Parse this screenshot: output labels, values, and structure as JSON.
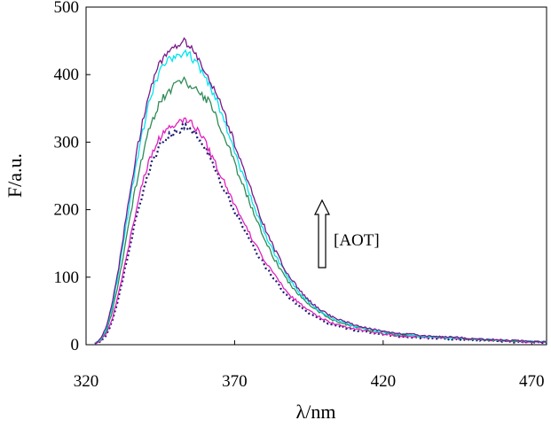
{
  "chart_data": {
    "type": "line",
    "title": "",
    "xlabel": "λ/nm",
    "ylabel": "F/a.u.",
    "xlim": [
      320,
      475
    ],
    "ylim": [
      0,
      500
    ],
    "xticks": [
      320,
      370,
      420,
      470
    ],
    "yticks": [
      0,
      100,
      200,
      300,
      400,
      500
    ],
    "grid": false,
    "annotation": "[AOT]",
    "annotation_arrow": "up",
    "series": [
      {
        "color": "#1a1a6e",
        "style": "dotted",
        "x": [
          323,
          325,
          327,
          329,
          331,
          333,
          335,
          337,
          339,
          341,
          343,
          345,
          347,
          349,
          351,
          353,
          355,
          357,
          359,
          361,
          363,
          365,
          367,
          369,
          371,
          373,
          375,
          377,
          379,
          381,
          383,
          385,
          387,
          389,
          391,
          393,
          395,
          397,
          399,
          401,
          403,
          405,
          410,
          415,
          420,
          425,
          430,
          435,
          440,
          445,
          450,
          455,
          460,
          465,
          470,
          475
        ],
        "values": [
          2,
          5,
          15,
          38,
          70,
          110,
          150,
          190,
          225,
          255,
          278,
          295,
          305,
          312,
          318,
          322,
          320,
          312,
          300,
          285,
          262,
          245,
          225,
          205,
          188,
          175,
          158,
          140,
          125,
          112,
          98,
          88,
          76,
          68,
          60,
          53,
          47,
          42,
          37,
          33,
          29,
          27,
          22,
          18,
          15,
          12,
          11,
          10,
          9,
          8,
          7,
          6,
          5,
          4,
          4,
          3
        ]
      },
      {
        "color": "#e020c0",
        "style": "solid",
        "x": [
          323,
          325,
          327,
          329,
          331,
          333,
          335,
          337,
          339,
          341,
          343,
          345,
          347,
          349,
          351,
          353,
          355,
          357,
          359,
          361,
          363,
          365,
          367,
          369,
          371,
          373,
          375,
          377,
          379,
          381,
          383,
          385,
          387,
          389,
          391,
          393,
          395,
          397,
          399,
          401,
          403,
          405,
          410,
          415,
          420,
          425,
          430,
          435,
          440,
          445,
          450,
          455,
          460,
          465,
          470,
          475
        ],
        "values": [
          2,
          6,
          18,
          42,
          78,
          118,
          160,
          200,
          240,
          270,
          292,
          308,
          318,
          325,
          332,
          335,
          330,
          320,
          308,
          292,
          272,
          255,
          235,
          215,
          197,
          182,
          165,
          148,
          132,
          118,
          105,
          93,
          82,
          72,
          64,
          57,
          51,
          45,
          40,
          36,
          32,
          29,
          24,
          20,
          16,
          13,
          12,
          11,
          10,
          9,
          8,
          7,
          6,
          5,
          4,
          4
        ]
      },
      {
        "color": "#2e8b57",
        "style": "solid",
        "x": [
          323,
          325,
          327,
          329,
          331,
          333,
          335,
          337,
          339,
          341,
          343,
          345,
          347,
          349,
          351,
          353,
          355,
          357,
          359,
          361,
          363,
          365,
          367,
          369,
          371,
          373,
          375,
          377,
          379,
          381,
          383,
          385,
          387,
          389,
          391,
          393,
          395,
          397,
          399,
          401,
          403,
          405,
          410,
          415,
          420,
          425,
          430,
          435,
          440,
          445,
          450,
          455,
          460,
          465,
          470,
          475
        ],
        "values": [
          2,
          7,
          22,
          52,
          95,
          145,
          195,
          240,
          280,
          315,
          340,
          360,
          372,
          380,
          388,
          390,
          385,
          378,
          370,
          362,
          350,
          325,
          305,
          280,
          255,
          235,
          212,
          190,
          168,
          148,
          130,
          115,
          100,
          88,
          77,
          68,
          60,
          53,
          47,
          42,
          37,
          33,
          27,
          22,
          18,
          15,
          13,
          12,
          11,
          10,
          8,
          7,
          6,
          5,
          5,
          4
        ]
      },
      {
        "color": "#00e5ee",
        "style": "solid",
        "x": [
          323,
          325,
          327,
          329,
          331,
          333,
          335,
          337,
          339,
          341,
          343,
          345,
          347,
          349,
          351,
          353,
          355,
          357,
          359,
          361,
          363,
          365,
          367,
          369,
          371,
          373,
          375,
          377,
          379,
          381,
          383,
          385,
          387,
          389,
          391,
          393,
          395,
          397,
          399,
          401,
          403,
          405,
          410,
          415,
          420,
          425,
          430,
          435,
          440,
          445,
          450,
          455,
          460,
          465,
          470,
          475
        ],
        "values": [
          2,
          8,
          25,
          60,
          108,
          165,
          220,
          270,
          315,
          355,
          385,
          405,
          418,
          425,
          430,
          432,
          428,
          418,
          405,
          390,
          370,
          350,
          325,
          298,
          272,
          250,
          225,
          200,
          178,
          157,
          138,
          122,
          107,
          94,
          82,
          72,
          63,
          56,
          49,
          44,
          39,
          35,
          28,
          23,
          19,
          16,
          14,
          12,
          11,
          10,
          9,
          8,
          7,
          6,
          5,
          4
        ]
      },
      {
        "color": "#7a1a8a",
        "style": "solid",
        "x": [
          323,
          325,
          327,
          329,
          331,
          333,
          335,
          337,
          339,
          341,
          343,
          345,
          347,
          349,
          351,
          353,
          355,
          357,
          359,
          361,
          363,
          365,
          367,
          369,
          371,
          373,
          375,
          377,
          379,
          381,
          383,
          385,
          387,
          389,
          391,
          393,
          395,
          397,
          399,
          401,
          403,
          405,
          410,
          415,
          420,
          425,
          430,
          435,
          440,
          445,
          450,
          455,
          460,
          465,
          470,
          475
        ],
        "values": [
          2,
          9,
          28,
          65,
          115,
          175,
          232,
          285,
          330,
          368,
          398,
          418,
          432,
          440,
          446,
          448,
          440,
          428,
          412,
          395,
          378,
          358,
          335,
          310,
          285,
          260,
          235,
          210,
          186,
          164,
          145,
          128,
          112,
          98,
          86,
          75,
          66,
          58,
          51,
          46,
          41,
          37,
          30,
          24,
          20,
          17,
          15,
          13,
          12,
          11,
          9,
          8,
          7,
          6,
          5,
          4
        ]
      }
    ]
  }
}
